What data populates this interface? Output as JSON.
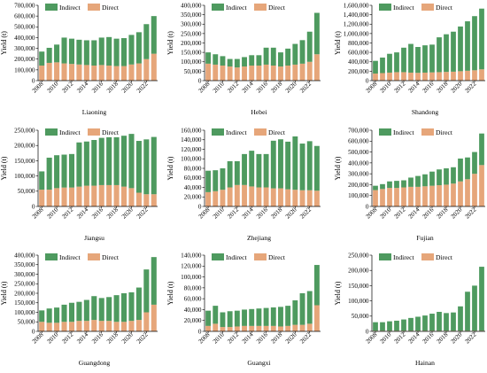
{
  "chart_data": [
    {
      "type": "bar",
      "stacked": true,
      "title": "Liaoning",
      "ylabel": "Yield (t)",
      "ylim": [
        0,
        700000
      ],
      "yticks": [
        0,
        100000,
        200000,
        300000,
        400000,
        500000,
        600000,
        700000
      ],
      "ytick_labels": [
        "0",
        "100,000",
        "200,000",
        "300,000",
        "400,000",
        "500,000",
        "600,000",
        "700,000"
      ],
      "categories": [
        "2008",
        "2009",
        "2010",
        "2011",
        "2012",
        "2013",
        "2014",
        "2015",
        "2016",
        "2017",
        "2018",
        "2019",
        "2020",
        "2021",
        "2022",
        "2023"
      ],
      "xtick_labels": [
        "2008",
        "2010",
        "2012",
        "2014",
        "2016",
        "2018",
        "2020",
        "2022"
      ],
      "legend": [
        "Indirect",
        "Direct"
      ],
      "series": [
        {
          "name": "Direct",
          "color": "#e6a67a",
          "values": [
            140000,
            165000,
            170000,
            160000,
            155000,
            150000,
            145000,
            140000,
            145000,
            140000,
            135000,
            135000,
            150000,
            160000,
            200000,
            250000
          ]
        },
        {
          "name": "Indirect",
          "color": "#4e9a5f",
          "values": [
            130000,
            140000,
            165000,
            240000,
            235000,
            230000,
            230000,
            235000,
            255000,
            265000,
            255000,
            260000,
            275000,
            290000,
            325000,
            350000
          ]
        }
      ]
    },
    {
      "type": "bar",
      "stacked": true,
      "title": "Hebei",
      "ylabel": "Yield (t)",
      "ylim": [
        0,
        400000
      ],
      "yticks": [
        0,
        50000,
        100000,
        150000,
        200000,
        250000,
        300000,
        350000,
        400000
      ],
      "ytick_labels": [
        "0",
        "50,000",
        "100,000",
        "150,000",
        "200,000",
        "250,000",
        "300,000",
        "350,000",
        "400,000"
      ],
      "categories": [
        "2008",
        "2009",
        "2010",
        "2011",
        "2012",
        "2013",
        "2014",
        "2015",
        "2016",
        "2017",
        "2018",
        "2019",
        "2020",
        "2021",
        "2022",
        "2023"
      ],
      "xtick_labels": [
        "2008",
        "2010",
        "2012",
        "2014",
        "2016",
        "2018",
        "2020",
        "2022"
      ],
      "legend": [
        "Indirect",
        "Direct"
      ],
      "series": [
        {
          "name": "Direct",
          "color": "#e6a67a",
          "values": [
            90000,
            85000,
            80000,
            75000,
            70000,
            75000,
            80000,
            80000,
            85000,
            80000,
            75000,
            80000,
            85000,
            90000,
            100000,
            140000
          ]
        },
        {
          "name": "Indirect",
          "color": "#4e9a5f",
          "values": [
            60000,
            55000,
            50000,
            40000,
            45000,
            50000,
            55000,
            55000,
            90000,
            95000,
            75000,
            90000,
            110000,
            125000,
            160000,
            220000
          ]
        }
      ]
    },
    {
      "type": "bar",
      "stacked": true,
      "title": "Shandong",
      "ylabel": "Yield (t)",
      "ylim": [
        0,
        1600000
      ],
      "yticks": [
        0,
        200000,
        400000,
        600000,
        800000,
        1000000,
        1200000,
        1400000,
        1600000
      ],
      "ytick_labels": [
        "0",
        "200,000",
        "400,000",
        "600,000",
        "800,000",
        "1,000,000",
        "1,200,000",
        "1,400,000",
        "1,600,000"
      ],
      "categories": [
        "2008",
        "2009",
        "2010",
        "2011",
        "2012",
        "2013",
        "2014",
        "2015",
        "2016",
        "2017",
        "2018",
        "2019",
        "2020",
        "2021",
        "2022",
        "2023"
      ],
      "xtick_labels": [
        "2008",
        "2010",
        "2012",
        "2014",
        "2016",
        "2018",
        "2020",
        "2022"
      ],
      "legend": [
        "Indirect",
        "Direct"
      ],
      "series": [
        {
          "name": "Direct",
          "color": "#e6a67a",
          "values": [
            150000,
            160000,
            170000,
            180000,
            180000,
            170000,
            165000,
            170000,
            175000,
            180000,
            185000,
            190000,
            200000,
            210000,
            220000,
            240000
          ]
        },
        {
          "name": "Indirect",
          "color": "#4e9a5f",
          "values": [
            270000,
            330000,
            400000,
            420000,
            520000,
            610000,
            550000,
            580000,
            590000,
            740000,
            800000,
            850000,
            950000,
            1050000,
            1150000,
            1290000
          ]
        }
      ]
    },
    {
      "type": "bar",
      "stacked": true,
      "title": "Jiangsu",
      "ylabel": "Yield (t)",
      "ylim": [
        0,
        250000
      ],
      "yticks": [
        0,
        50000,
        100000,
        150000,
        200000,
        250000
      ],
      "ytick_labels": [
        "0",
        "50,000",
        "100,000",
        "150,000",
        "200,000",
        "250,000"
      ],
      "categories": [
        "2008",
        "2009",
        "2010",
        "2011",
        "2012",
        "2013",
        "2014",
        "2015",
        "2016",
        "2017",
        "2018",
        "2019",
        "2020",
        "2021",
        "2022",
        "2023"
      ],
      "xtick_labels": [
        "2008",
        "2010",
        "2012",
        "2014",
        "2016",
        "2018",
        "2020",
        "2022"
      ],
      "legend": [
        "Indirect",
        "Direct"
      ],
      "series": [
        {
          "name": "Direct",
          "color": "#e6a67a",
          "values": [
            55000,
            55000,
            60000,
            62000,
            62000,
            65000,
            68000,
            68000,
            70000,
            70000,
            70000,
            65000,
            60000,
            45000,
            40000,
            40000
          ]
        },
        {
          "name": "Indirect",
          "color": "#4e9a5f",
          "values": [
            60000,
            105000,
            108000,
            108000,
            110000,
            145000,
            145000,
            150000,
            155000,
            157000,
            157000,
            167000,
            178000,
            170000,
            180000,
            188000
          ]
        }
      ]
    },
    {
      "type": "bar",
      "stacked": true,
      "title": "Zhejiang",
      "ylabel": "Yield (t)",
      "ylim": [
        0,
        160000
      ],
      "yticks": [
        0,
        20000,
        40000,
        60000,
        80000,
        100000,
        120000,
        140000,
        160000
      ],
      "ytick_labels": [
        "0",
        "20,000",
        "40,000",
        "60,000",
        "80,000",
        "100,000",
        "120,000",
        "140,000",
        "160,000"
      ],
      "categories": [
        "2008",
        "2009",
        "2010",
        "2011",
        "2012",
        "2013",
        "2014",
        "2015",
        "2016",
        "2017",
        "2018",
        "2019",
        "2020",
        "2021",
        "2022",
        "2023"
      ],
      "xtick_labels": [
        "2008",
        "2010",
        "2012",
        "2014",
        "2016",
        "2018",
        "2020",
        "2022"
      ],
      "legend": [
        "Indirect",
        "Direct"
      ],
      "series": [
        {
          "name": "Direct",
          "color": "#e6a67a",
          "values": [
            30000,
            32000,
            35000,
            40000,
            45000,
            45000,
            42000,
            40000,
            40000,
            38000,
            38000,
            36000,
            35000,
            34000,
            34000,
            33000
          ]
        },
        {
          "name": "Indirect",
          "color": "#4e9a5f",
          "values": [
            45000,
            44000,
            45000,
            55000,
            50000,
            65000,
            75000,
            70000,
            70000,
            100000,
            103000,
            100000,
            112000,
            98000,
            103000,
            94000
          ]
        }
      ]
    },
    {
      "type": "bar",
      "stacked": true,
      "title": "Fujian",
      "ylabel": "Yield (t)",
      "ylim": [
        0,
        700000
      ],
      "yticks": [
        0,
        100000,
        200000,
        300000,
        400000,
        500000,
        600000,
        700000
      ],
      "ytick_labels": [
        "0",
        "100,000",
        "200,000",
        "300,000",
        "400,000",
        "500,000",
        "600,000",
        "700,000"
      ],
      "categories": [
        "2008",
        "2009",
        "2010",
        "2011",
        "2012",
        "2013",
        "2014",
        "2015",
        "2016",
        "2017",
        "2018",
        "2019",
        "2020",
        "2021",
        "2022",
        "2023"
      ],
      "xtick_labels": [
        "2008",
        "2010",
        "2012",
        "2014",
        "2016",
        "2018",
        "2020",
        "2022"
      ],
      "legend": [
        "Indirect",
        "Direct"
      ],
      "series": [
        {
          "name": "Direct",
          "color": "#e6a67a",
          "values": [
            150000,
            160000,
            170000,
            170000,
            175000,
            180000,
            180000,
            185000,
            190000,
            195000,
            200000,
            210000,
            230000,
            250000,
            300000,
            380000
          ]
        },
        {
          "name": "Indirect",
          "color": "#4e9a5f",
          "values": [
            40000,
            45000,
            60000,
            65000,
            65000,
            85000,
            100000,
            110000,
            130000,
            145000,
            150000,
            150000,
            210000,
            200000,
            200000,
            290000
          ]
        }
      ]
    },
    {
      "type": "bar",
      "stacked": true,
      "title": "Guangdong",
      "ylabel": "Yield (t)",
      "ylim": [
        0,
        400000
      ],
      "yticks": [
        0,
        50000,
        100000,
        150000,
        200000,
        250000,
        300000,
        350000,
        400000
      ],
      "ytick_labels": [
        "0",
        "50,000",
        "100,000",
        "150,000",
        "200,000",
        "250,000",
        "300,000",
        "350,000",
        "400,000"
      ],
      "categories": [
        "2008",
        "2009",
        "2010",
        "2011",
        "2012",
        "2013",
        "2014",
        "2015",
        "2016",
        "2017",
        "2018",
        "2019",
        "2020",
        "2021",
        "2022",
        "2023"
      ],
      "xtick_labels": [
        "2008",
        "2010",
        "2012",
        "2014",
        "2016",
        "2018",
        "2020",
        "2022"
      ],
      "legend": [
        "Indirect",
        "Direct"
      ],
      "series": [
        {
          "name": "Direct",
          "color": "#e6a67a",
          "values": [
            50000,
            45000,
            45000,
            50000,
            50000,
            55000,
            55000,
            60000,
            55000,
            55000,
            50000,
            50000,
            55000,
            60000,
            100000,
            140000
          ]
        },
        {
          "name": "Indirect",
          "color": "#4e9a5f",
          "values": [
            60000,
            75000,
            80000,
            90000,
            100000,
            100000,
            110000,
            125000,
            120000,
            125000,
            140000,
            150000,
            150000,
            170000,
            225000,
            250000
          ]
        }
      ]
    },
    {
      "type": "bar",
      "stacked": true,
      "title": "Guangxi",
      "ylabel": "Yield (t)",
      "ylim": [
        0,
        140000
      ],
      "yticks": [
        0,
        20000,
        40000,
        60000,
        80000,
        100000,
        120000,
        140000
      ],
      "ytick_labels": [
        "0",
        "20,000",
        "40,000",
        "60,000",
        "80,000",
        "100,000",
        "120,000",
        "140,000"
      ],
      "categories": [
        "2008",
        "2009",
        "2010",
        "2011",
        "2012",
        "2013",
        "2014",
        "2015",
        "2016",
        "2017",
        "2018",
        "2019",
        "2020",
        "2021",
        "2022",
        "2023"
      ],
      "xtick_labels": [
        "2008",
        "2010",
        "2012",
        "2014",
        "2016",
        "2018",
        "2020",
        "2022"
      ],
      "legend": [
        "Indirect",
        "Direct"
      ],
      "series": [
        {
          "name": "Direct",
          "color": "#e6a67a",
          "values": [
            10000,
            14000,
            8000,
            8000,
            9000,
            10000,
            10000,
            10000,
            10000,
            10000,
            9000,
            10000,
            12000,
            12000,
            14000,
            48000
          ]
        },
        {
          "name": "Indirect",
          "color": "#4e9a5f",
          "values": [
            28000,
            33000,
            27000,
            29000,
            29000,
            30000,
            31000,
            32000,
            33000,
            34000,
            36000,
            37000,
            45000,
            58000,
            60000,
            74000
          ]
        }
      ]
    },
    {
      "type": "bar",
      "stacked": true,
      "title": "Hainan",
      "ylabel": "Yield (t)",
      "ylim": [
        0,
        250000
      ],
      "yticks": [
        0,
        50000,
        100000,
        150000,
        200000,
        250000
      ],
      "ytick_labels": [
        "0",
        "50,000",
        "100,000",
        "150,000",
        "200,000",
        "250,000"
      ],
      "categories": [
        "2008",
        "2009",
        "2010",
        "2011",
        "2012",
        "2013",
        "2014",
        "2015",
        "2016",
        "2017",
        "2018",
        "2019",
        "2020",
        "2021",
        "2022",
        "2023"
      ],
      "xtick_labels": [
        "2008",
        "2010",
        "2012",
        "2014",
        "2016",
        "2018",
        "2020",
        "2022"
      ],
      "legend": [
        "Indirect",
        "Direct"
      ],
      "series": [
        {
          "name": "Direct",
          "color": "#e6a67a",
          "values": [
            2000,
            2000,
            2000,
            2000,
            2000,
            2000,
            2000,
            2000,
            2000,
            2000,
            2000,
            2000,
            2000,
            2000,
            2000,
            2000
          ]
        },
        {
          "name": "Indirect",
          "color": "#4e9a5f",
          "values": [
            28000,
            28000,
            31000,
            33000,
            37000,
            42000,
            46000,
            50000,
            56000,
            62000,
            58000,
            60000,
            80000,
            128000,
            148000,
            210000
          ]
        }
      ]
    }
  ]
}
